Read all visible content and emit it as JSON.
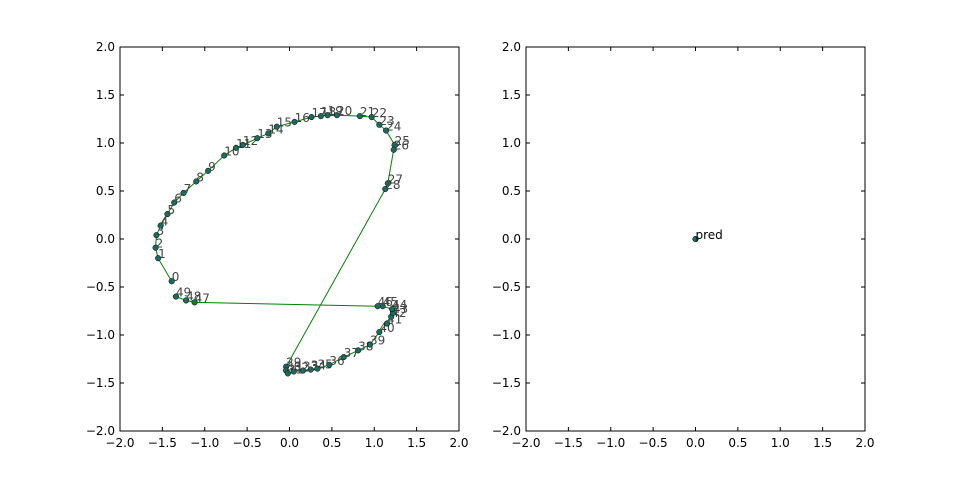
{
  "chart_data": [
    {
      "type": "line",
      "title": "",
      "xlabel": "",
      "ylabel": "",
      "xlim": [
        -2.0,
        2.0
      ],
      "ylim": [
        -2.0,
        2.0
      ],
      "xticks": [
        "−2.0",
        "−1.5",
        "−1.0",
        "−0.5",
        "0.0",
        "0.5",
        "1.0",
        "1.5",
        "2.0"
      ],
      "yticks": [
        "−2.0",
        "−1.5",
        "−1.0",
        "−0.5",
        "0.0",
        "0.5",
        "1.0",
        "1.5",
        "2.0"
      ],
      "grid": false,
      "line_color": "#008000",
      "marker_color": "#1b6b5e",
      "points": [
        {
          "label": "0",
          "x": -1.39,
          "y": -0.44
        },
        {
          "label": "1",
          "x": -1.55,
          "y": -0.2
        },
        {
          "label": "2",
          "x": -1.58,
          "y": -0.09
        },
        {
          "label": "3",
          "x": -1.57,
          "y": 0.04
        },
        {
          "label": "4",
          "x": -1.52,
          "y": 0.14
        },
        {
          "label": "5",
          "x": -1.44,
          "y": 0.26
        },
        {
          "label": "6",
          "x": -1.36,
          "y": 0.38
        },
        {
          "label": "7",
          "x": -1.25,
          "y": 0.48
        },
        {
          "label": "8",
          "x": -1.1,
          "y": 0.6
        },
        {
          "label": "9",
          "x": -0.96,
          "y": 0.71
        },
        {
          "label": "10",
          "x": -0.77,
          "y": 0.87
        },
        {
          "label": "11",
          "x": -0.63,
          "y": 0.95
        },
        {
          "label": "12",
          "x": -0.55,
          "y": 0.98
        },
        {
          "label": "13",
          "x": -0.38,
          "y": 1.05
        },
        {
          "label": "14",
          "x": -0.25,
          "y": 1.1
        },
        {
          "label": "15",
          "x": -0.15,
          "y": 1.17
        },
        {
          "label": "16",
          "x": 0.06,
          "y": 1.22
        },
        {
          "label": "17",
          "x": 0.26,
          "y": 1.27
        },
        {
          "label": "18",
          "x": 0.37,
          "y": 1.28
        },
        {
          "label": "19",
          "x": 0.45,
          "y": 1.29
        },
        {
          "label": "20",
          "x": 0.56,
          "y": 1.29
        },
        {
          "label": "21",
          "x": 0.83,
          "y": 1.28
        },
        {
          "label": "22",
          "x": 0.97,
          "y": 1.27
        },
        {
          "label": "23",
          "x": 1.06,
          "y": 1.19
        },
        {
          "label": "24",
          "x": 1.14,
          "y": 1.13
        },
        {
          "label": "25",
          "x": 1.24,
          "y": 0.98
        },
        {
          "label": "26",
          "x": 1.23,
          "y": 0.93
        },
        {
          "label": "27",
          "x": 1.16,
          "y": 0.58
        },
        {
          "label": "28",
          "x": 1.13,
          "y": 0.52
        },
        {
          "label": "29",
          "x": -0.04,
          "y": -1.33
        },
        {
          "label": "30",
          "x": -0.04,
          "y": -1.37
        },
        {
          "label": "31",
          "x": -0.02,
          "y": -1.4
        },
        {
          "label": "32",
          "x": 0.05,
          "y": -1.38
        },
        {
          "label": "33",
          "x": 0.16,
          "y": -1.37
        },
        {
          "label": "34",
          "x": 0.25,
          "y": -1.36
        },
        {
          "label": "35",
          "x": 0.33,
          "y": -1.35
        },
        {
          "label": "36",
          "x": 0.47,
          "y": -1.31
        },
        {
          "label": "37",
          "x": 0.64,
          "y": -1.23
        },
        {
          "label": "38",
          "x": 0.81,
          "y": -1.16
        },
        {
          "label": "39",
          "x": 0.95,
          "y": -1.1
        },
        {
          "label": "40",
          "x": 1.06,
          "y": -0.97
        },
        {
          "label": "41",
          "x": 1.15,
          "y": -0.88
        },
        {
          "label": "42",
          "x": 1.2,
          "y": -0.81
        },
        {
          "label": "43",
          "x": 1.22,
          "y": -0.77
        },
        {
          "label": "44",
          "x": 1.21,
          "y": -0.73
        },
        {
          "label": "45",
          "x": 1.1,
          "y": -0.7
        },
        {
          "label": "46",
          "x": 1.04,
          "y": -0.7
        },
        {
          "label": "47",
          "x": -1.12,
          "y": -0.66
        },
        {
          "label": "48",
          "x": -1.22,
          "y": -0.64
        },
        {
          "label": "49",
          "x": -1.34,
          "y": -0.6
        }
      ]
    },
    {
      "type": "scatter",
      "title": "",
      "xlabel": "",
      "ylabel": "",
      "xlim": [
        -2.0,
        2.0
      ],
      "ylim": [
        -2.0,
        2.0
      ],
      "xticks": [
        "−2.0",
        "−1.5",
        "−1.0",
        "−0.5",
        "0.0",
        "0.5",
        "1.0",
        "1.5",
        "2.0"
      ],
      "yticks": [
        "−2.0",
        "−1.5",
        "−1.0",
        "−0.5",
        "0.0",
        "0.5",
        "1.0",
        "1.5",
        "2.0"
      ],
      "grid": false,
      "marker_color": "#1b6b5e",
      "points": [
        {
          "label": "pred",
          "x": 0.0,
          "y": 0.0
        }
      ]
    }
  ]
}
